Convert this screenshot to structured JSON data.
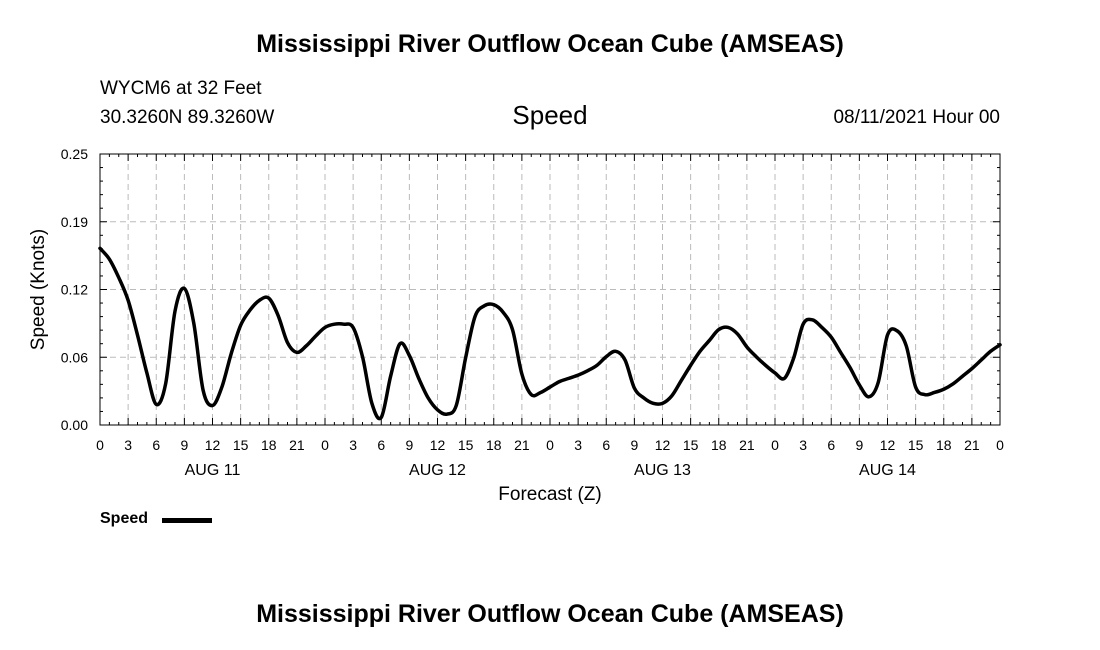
{
  "header": {
    "title": "Mississippi River Outflow Ocean Cube (AMSEAS)",
    "station": "WYCM6 at 32 Feet",
    "coordinates": "30.3260N  89.3260W",
    "variable": "Speed",
    "datetime": "08/11/2021 Hour 00"
  },
  "footer": {
    "title": "Mississippi River Outflow Ocean Cube (AMSEAS)"
  },
  "legend": {
    "label": "Speed",
    "color": "#000000"
  },
  "chart_data": {
    "type": "line",
    "title": "Speed",
    "xlabel": "Forecast (Z)",
    "ylabel": "Speed (Knots)",
    "ylim": [
      0,
      0.25
    ],
    "xlim": [
      0,
      96
    ],
    "yticks": [
      "0.00",
      "0.06",
      "0.12",
      "0.19",
      "0.25"
    ],
    "ytick_values": [
      0,
      0.0625,
      0.125,
      0.1875,
      0.25
    ],
    "xtick_labels": [
      "0",
      "3",
      "6",
      "9",
      "12",
      "15",
      "18",
      "21",
      "0",
      "3",
      "6",
      "9",
      "12",
      "15",
      "18",
      "21",
      "0",
      "3",
      "6",
      "9",
      "12",
      "15",
      "18",
      "21",
      "0",
      "3",
      "6",
      "9",
      "12",
      "15",
      "18",
      "21",
      "0"
    ],
    "date_labels": [
      {
        "label": "AUG 11",
        "hour": 12
      },
      {
        "label": "AUG 12",
        "hour": 36
      },
      {
        "label": "AUG 13",
        "hour": 60
      },
      {
        "label": "AUG 14",
        "hour": 84
      }
    ],
    "grid": true,
    "series": [
      {
        "name": "Speed",
        "x": [
          0,
          1,
          2,
          3,
          4,
          5,
          6,
          7,
          8,
          9,
          10,
          11,
          12,
          13,
          14,
          15,
          16,
          17,
          18,
          19,
          20,
          21,
          22,
          23,
          24,
          25,
          26,
          27,
          28,
          29,
          30,
          31,
          32,
          33,
          34,
          35,
          36,
          37,
          38,
          39,
          40,
          41,
          42,
          43,
          44,
          45,
          46,
          47,
          48,
          49,
          50,
          51,
          52,
          53,
          54,
          55,
          56,
          57,
          58,
          59,
          60,
          61,
          62,
          63,
          64,
          65,
          66,
          67,
          68,
          69,
          70,
          71,
          72,
          73,
          74,
          75,
          76,
          77,
          78,
          79,
          80,
          81,
          82,
          83,
          84,
          85,
          86,
          87,
          88,
          89,
          90,
          91,
          92,
          93,
          94,
          95,
          96
        ],
        "values": [
          0.163,
          0.153,
          0.136,
          0.115,
          0.083,
          0.048,
          0.019,
          0.038,
          0.105,
          0.126,
          0.094,
          0.032,
          0.018,
          0.035,
          0.066,
          0.092,
          0.106,
          0.115,
          0.117,
          0.101,
          0.076,
          0.067,
          0.073,
          0.082,
          0.09,
          0.093,
          0.093,
          0.09,
          0.063,
          0.02,
          0.007,
          0.045,
          0.075,
          0.064,
          0.043,
          0.025,
          0.014,
          0.01,
          0.018,
          0.062,
          0.1,
          0.11,
          0.111,
          0.104,
          0.088,
          0.047,
          0.028,
          0.03,
          0.035,
          0.04,
          0.043,
          0.046,
          0.05,
          0.055,
          0.063,
          0.068,
          0.06,
          0.034,
          0.025,
          0.02,
          0.02,
          0.027,
          0.041,
          0.055,
          0.068,
          0.078,
          0.088,
          0.09,
          0.084,
          0.072,
          0.063,
          0.055,
          0.048,
          0.043,
          0.062,
          0.093,
          0.097,
          0.09,
          0.081,
          0.067,
          0.053,
          0.037,
          0.026,
          0.039,
          0.083,
          0.087,
          0.073,
          0.035,
          0.028,
          0.03,
          0.033,
          0.038,
          0.045,
          0.052,
          0.06,
          0.068,
          0.074
        ]
      }
    ]
  }
}
